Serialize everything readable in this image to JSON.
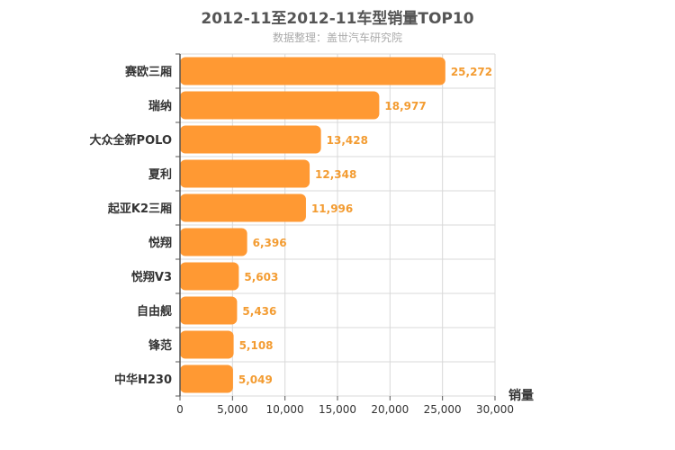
{
  "chart_data": {
    "type": "bar",
    "orientation": "horizontal",
    "title": "2012-11至2012-11车型销量TOP10",
    "subtitle": "数据整理：盖世汽车研究院",
    "categories": [
      "赛欧三厢",
      "瑞纳",
      "大众全新POLO",
      "夏利",
      "起亚K2三厢",
      "悦翔",
      "悦翔V3",
      "自由舰",
      "锋范",
      "中华H230"
    ],
    "values": [
      25272,
      18977,
      13428,
      12348,
      11996,
      6396,
      5603,
      5436,
      5108,
      5049
    ],
    "value_labels": [
      "25,272",
      "18,977",
      "13,428",
      "12,348",
      "11,996",
      "6,396",
      "5,603",
      "5,436",
      "5,108",
      "5,049"
    ],
    "xlabel": "销量",
    "xlim": [
      0,
      30000
    ],
    "xticks": [
      0,
      5000,
      10000,
      15000,
      20000,
      25000,
      30000
    ],
    "xtick_labels": [
      "0",
      "5,000",
      "10,000",
      "15,000",
      "20,000",
      "25,000",
      "30,000"
    ],
    "grid": true,
    "colors": {
      "bar": "#ff9933",
      "value_label": "#f39c32",
      "grid": "#d9d9d9",
      "axis": "#555555"
    }
  }
}
